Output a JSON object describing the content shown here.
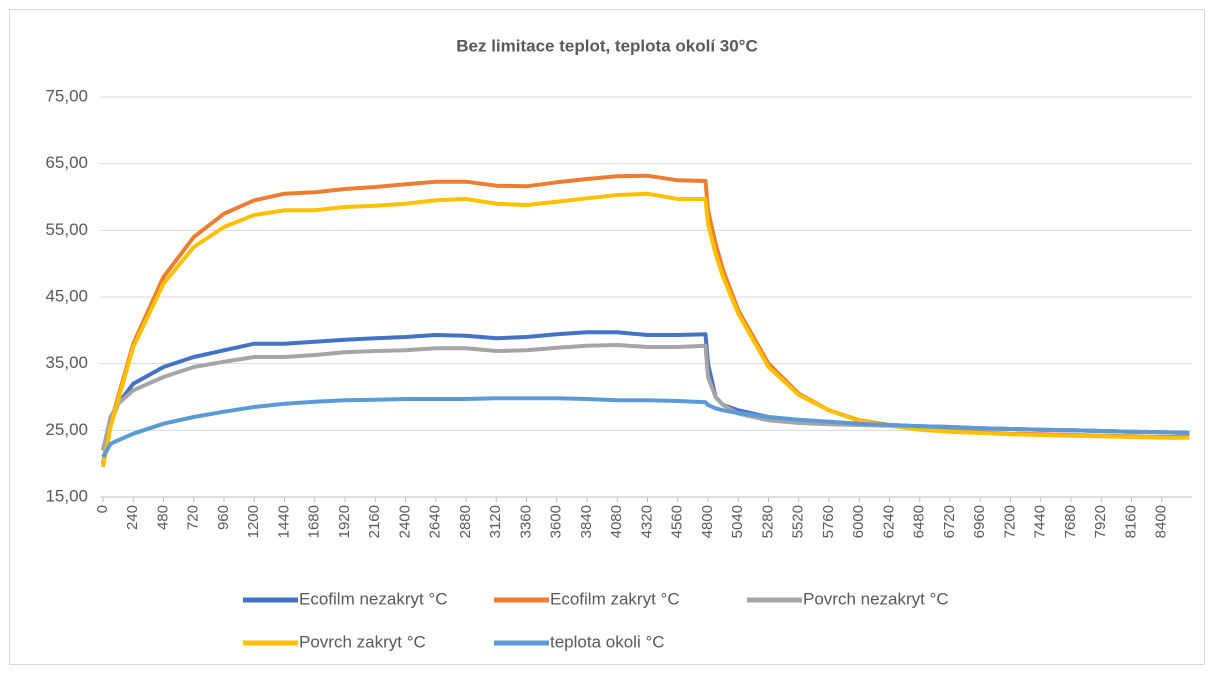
{
  "chart_data": {
    "type": "line",
    "title": "Bez limitace teplot, teplota okolí 30°C",
    "x": [
      0,
      60,
      120,
      240,
      480,
      720,
      960,
      1200,
      1440,
      1680,
      1920,
      2160,
      2400,
      2640,
      2880,
      3120,
      3360,
      3600,
      3840,
      4080,
      4320,
      4560,
      4780,
      4800,
      4860,
      4920,
      5040,
      5280,
      5520,
      5760,
      6000,
      6240,
      6480,
      6720,
      6960,
      7200,
      7440,
      7680,
      7920,
      8160,
      8400,
      8620
    ],
    "series": [
      {
        "name": "Ecofilm nezakryt °C",
        "color": "#4472c4",
        "values": [
          22,
          26,
          29,
          32,
          34.5,
          36,
          37,
          38,
          38,
          38.3,
          38.6,
          38.8,
          39,
          39.3,
          39.2,
          38.8,
          39,
          39.4,
          39.7,
          39.7,
          39.3,
          39.3,
          39.4,
          35,
          30,
          28.8,
          28,
          27,
          26.5,
          26.2,
          26,
          25.8,
          25.6,
          25.5,
          25.3,
          25.2,
          25.1,
          25,
          24.9,
          24.8,
          24.7,
          24.6
        ]
      },
      {
        "name": "Ecofilm zakryt °C",
        "color": "#ed7d31",
        "values": [
          20,
          26,
          30,
          38,
          48,
          54,
          57.5,
          59.5,
          60.5,
          60.7,
          61.2,
          61.5,
          61.9,
          62.3,
          62.3,
          61.7,
          61.6,
          62.2,
          62.7,
          63.1,
          63.2,
          62.5,
          62.4,
          58,
          53,
          49,
          43,
          35,
          30.5,
          28,
          26.5,
          25.8,
          25.2,
          24.9,
          24.7,
          24.5,
          24.4,
          24.3,
          24.2,
          24.1,
          24,
          24
        ]
      },
      {
        "name": "Povrch nezakryt °C",
        "color": "#a5a5a5",
        "values": [
          22,
          27,
          29,
          31,
          33,
          34.5,
          35.3,
          36,
          36,
          36.3,
          36.7,
          36.9,
          37,
          37.3,
          37.3,
          36.9,
          37,
          37.4,
          37.7,
          37.8,
          37.5,
          37.5,
          37.7,
          33,
          30,
          28.8,
          27.5,
          26.5,
          26.1,
          25.9,
          25.8,
          25.7,
          25.6,
          25.5,
          25.3,
          25.2,
          25.1,
          25,
          24.9,
          24.8,
          24.7,
          24.6
        ]
      },
      {
        "name": "Povrch zakryt °C",
        "color": "#ffc000",
        "values": [
          19.5,
          25.5,
          29.5,
          37.5,
          47,
          52.5,
          55.5,
          57.3,
          58,
          58,
          58.5,
          58.7,
          59,
          59.5,
          59.7,
          59,
          58.8,
          59.3,
          59.8,
          60.3,
          60.5,
          59.7,
          59.7,
          56,
          51.5,
          48,
          42.5,
          34.5,
          30.3,
          28,
          26.4,
          25.7,
          25.1,
          24.8,
          24.6,
          24.4,
          24.3,
          24.2,
          24.1,
          24,
          23.9,
          23.9
        ]
      },
      {
        "name": "teplota okoli °C",
        "color": "#5b9bd5",
        "values": [
          21,
          23,
          23.5,
          24.5,
          26,
          27,
          27.8,
          28.5,
          29,
          29.3,
          29.5,
          29.6,
          29.7,
          29.7,
          29.7,
          29.8,
          29.8,
          29.8,
          29.7,
          29.5,
          29.5,
          29.4,
          29.2,
          28.8,
          28.3,
          28,
          27.6,
          27,
          26.6,
          26.3,
          26,
          25.8,
          25.6,
          25.5,
          25.3,
          25.2,
          25.1,
          25,
          24.9,
          24.8,
          24.7,
          24.6
        ]
      }
    ],
    "xlim": [
      0,
      8640
    ],
    "xticks": [
      0,
      240,
      480,
      720,
      960,
      1200,
      1440,
      1680,
      1920,
      2160,
      2400,
      2640,
      2880,
      3120,
      3360,
      3600,
      3840,
      4080,
      4320,
      4560,
      4800,
      5040,
      5280,
      5520,
      5760,
      6000,
      6240,
      6480,
      6720,
      6960,
      7200,
      7440,
      7680,
      7920,
      8160,
      8400
    ],
    "ylim": [
      15,
      75
    ],
    "yticks": [
      {
        "value": 15,
        "label": "15,00"
      },
      {
        "value": 25,
        "label": "25,00"
      },
      {
        "value": 35,
        "label": "35,00"
      },
      {
        "value": 45,
        "label": "45,00"
      },
      {
        "value": 55,
        "label": "55,00"
      },
      {
        "value": 65,
        "label": "65,00"
      },
      {
        "value": 75,
        "label": "75,00"
      }
    ],
    "grid": true,
    "legend": "bottom"
  }
}
